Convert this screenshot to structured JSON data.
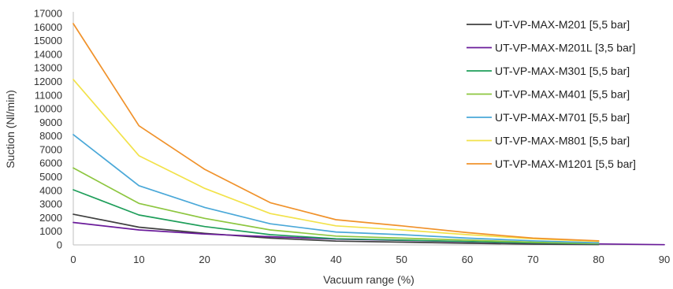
{
  "chart_data": {
    "type": "line",
    "xlabel": "Vacuum range (%)",
    "ylabel": "Suction (Nl/min)",
    "xlim": [
      0,
      90
    ],
    "ylim": [
      0,
      17000
    ],
    "x_ticks": [
      "0",
      "10",
      "20",
      "30",
      "40",
      "50",
      "60",
      "70",
      "80",
      "90"
    ],
    "y_ticks": [
      "0",
      "1000",
      "2000",
      "3000",
      "4000",
      "5000",
      "6000",
      "7000",
      "8000",
      "9000",
      "10000",
      "11000",
      "12000",
      "13000",
      "14000",
      "15000",
      "16000",
      "17000"
    ],
    "grid": false,
    "legend_position": "right",
    "series": [
      {
        "name": "UT-VP-MAX-M201 [5,5 bar]",
        "color": "#404040",
        "x": [
          0,
          10,
          20,
          30,
          40,
          50,
          60,
          70,
          80
        ],
        "y": [
          2250,
          1300,
          850,
          500,
          280,
          200,
          120,
          60,
          30
        ]
      },
      {
        "name": "UT-VP-MAX-M201L [3,5 bar]",
        "color": "#6a1b9a",
        "x": [
          0,
          10,
          20,
          30,
          40,
          50,
          60,
          70,
          80,
          90
        ],
        "y": [
          1650,
          1100,
          800,
          600,
          430,
          330,
          230,
          140,
          70,
          20
        ]
      },
      {
        "name": "UT-VP-MAX-M301 [5,5 bar]",
        "color": "#1e9e5a",
        "x": [
          0,
          10,
          20,
          30,
          40,
          50,
          60,
          70,
          80
        ],
        "y": [
          4050,
          2200,
          1350,
          750,
          450,
          350,
          250,
          150,
          80
        ]
      },
      {
        "name": "UT-VP-MAX-M401 [5,5 bar]",
        "color": "#8dc63f",
        "x": [
          0,
          10,
          20,
          30,
          40,
          50,
          60,
          70,
          80
        ],
        "y": [
          5650,
          3050,
          1950,
          1100,
          650,
          500,
          350,
          200,
          100
        ]
      },
      {
        "name": "UT-VP-MAX-M701 [5,5 bar]",
        "color": "#4aa8d8",
        "x": [
          0,
          10,
          20,
          30,
          40,
          50,
          60,
          70,
          80
        ],
        "y": [
          8100,
          4350,
          2750,
          1550,
          950,
          750,
          500,
          300,
          150
        ]
      },
      {
        "name": "UT-VP-MAX-M801 [5,5 bar]",
        "color": "#f2e24a",
        "x": [
          0,
          10,
          20,
          30,
          40,
          50,
          60,
          70,
          80
        ],
        "y": [
          12150,
          6550,
          4150,
          2300,
          1400,
          1100,
          750,
          450,
          250
        ]
      },
      {
        "name": "UT-VP-MAX-M1201 [5,5 bar]",
        "color": "#f0922b",
        "x": [
          0,
          10,
          20,
          30,
          40,
          50,
          60,
          70,
          80
        ],
        "y": [
          16250,
          8750,
          5550,
          3100,
          1850,
          1400,
          900,
          500,
          300
        ]
      }
    ]
  }
}
